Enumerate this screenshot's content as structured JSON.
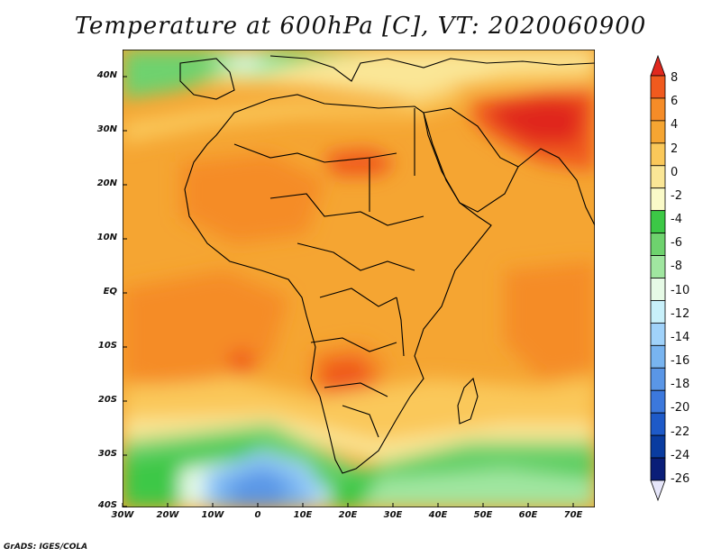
{
  "title": "Temperature at 600hPa [C], VT: 2020060900",
  "credit": "GrADS: IGES/COLA",
  "map": {
    "lat_labels": [
      "40N",
      "30N",
      "20N",
      "10N",
      "EQ",
      "10S",
      "20S",
      "30S",
      "40S"
    ],
    "lon_labels": [
      "30W",
      "20W",
      "10W",
      "0",
      "10E",
      "20E",
      "30E",
      "40E",
      "50E",
      "60E",
      "70E"
    ],
    "lat_values": [
      40,
      30,
      20,
      10,
      0,
      -10,
      -20,
      -30,
      -40
    ],
    "lon_values": [
      -30,
      -20,
      -10,
      0,
      10,
      20,
      30,
      40,
      50,
      60,
      70
    ]
  },
  "colorbar": {
    "labels": [
      "8",
      "6",
      "4",
      "2",
      "0",
      "-2",
      "-4",
      "-6",
      "-8",
      "-10",
      "-12",
      "-14",
      "-16",
      "-18",
      "-20",
      "-22",
      "-24",
      "-26"
    ],
    "colors": [
      "#e0281e",
      "#f05a1e",
      "#f58c28",
      "#f5a532",
      "#fac85a",
      "#fae696",
      "#fafac8",
      "#3cc846",
      "#6ed26e",
      "#a0e6a0",
      "#e6fae6",
      "#c8f0fa",
      "#a0d2fa",
      "#78b4f0",
      "#5a96e6",
      "#3c78dc",
      "#1e5ac8",
      "#0a3ca0",
      "#0a1e78",
      "#e6e6fa"
    ]
  }
}
